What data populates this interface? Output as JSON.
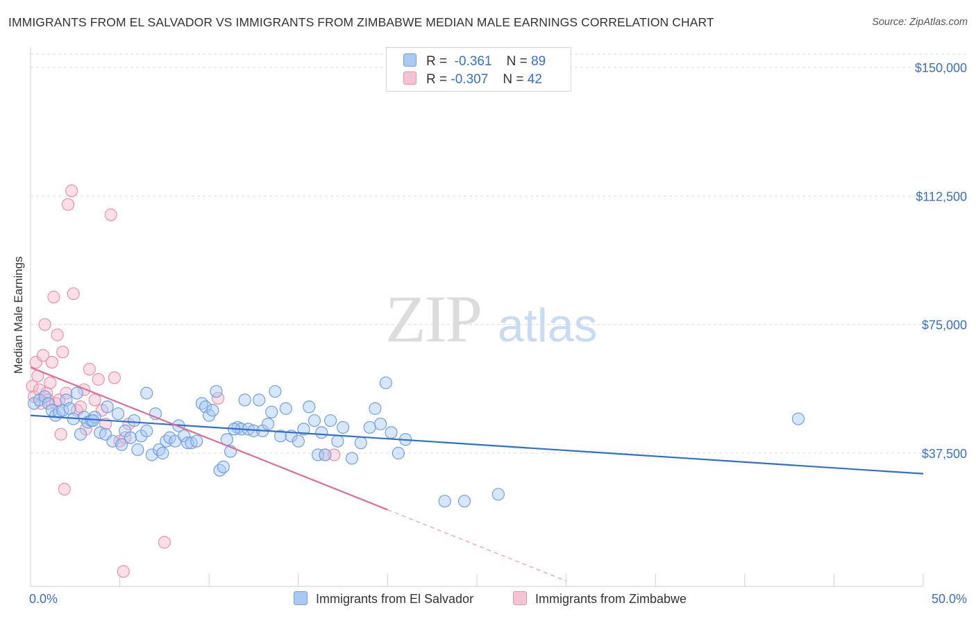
{
  "title": "IMMIGRANTS FROM EL SALVADOR VS IMMIGRANTS FROM ZIMBABWE MEDIAN MALE EARNINGS CORRELATION CHART",
  "source": "Source: ZipAtlas.com",
  "watermark": {
    "zip": "ZIP",
    "atlas": "atlas"
  },
  "legend": {
    "rows": [
      {
        "r_label": "R =",
        "r_value": "-0.361",
        "n_label": "N =",
        "n_value": "89"
      },
      {
        "r_label": "R =",
        "r_value": "-0.307",
        "n_label": "N =",
        "n_value": "42"
      }
    ]
  },
  "bottom_legend": [
    "Immigrants from El Salvador",
    "Immigrants from Zimbabwe"
  ],
  "colors": {
    "blue_fill": "#a9c8f2",
    "blue_stroke": "#6f9fdf",
    "blue_line": "#2f6fce",
    "pink_fill": "#f6b8cb",
    "pink_stroke": "#e591ad",
    "pink_line": "#e06b96",
    "axis_text": "#3a6fc4",
    "grid": "#d9d9d9"
  },
  "chart_data": {
    "type": "scatter",
    "title": "IMMIGRANTS FROM EL SALVADOR VS IMMIGRANTS FROM ZIMBABWE MEDIAN MALE EARNINGS CORRELATION CHART",
    "xlabel": "",
    "ylabel": "Median Male Earnings",
    "xlim": [
      0,
      50
    ],
    "ylim": [
      0,
      160000
    ],
    "x_tick_labels": [
      "0.0%",
      "50.0%"
    ],
    "y_ticks": [
      37500,
      75000,
      112500,
      150000
    ],
    "y_tick_labels": [
      "$37,500",
      "$75,000",
      "$112,500",
      "$150,000"
    ],
    "series": [
      {
        "name": "Immigrants from El Salvador",
        "r": -0.361,
        "n": 89,
        "trend": {
          "x0": 0.0,
          "y0": 48500,
          "x1": 50.0,
          "y1": 31500
        },
        "points": [
          [
            0.2,
            52000
          ],
          [
            0.5,
            53000
          ],
          [
            0.8,
            54000
          ],
          [
            1.0,
            52000
          ],
          [
            1.2,
            50000
          ],
          [
            1.4,
            48500
          ],
          [
            1.6,
            49500
          ],
          [
            1.8,
            50000
          ],
          [
            2.0,
            53000
          ],
          [
            2.2,
            50500
          ],
          [
            2.4,
            47500
          ],
          [
            2.6,
            55000
          ],
          [
            2.8,
            43000
          ],
          [
            3.0,
            48000
          ],
          [
            3.2,
            46500
          ],
          [
            3.4,
            47000
          ],
          [
            3.6,
            48000
          ],
          [
            3.9,
            43500
          ],
          [
            4.2,
            43000
          ],
          [
            4.3,
            51000
          ],
          [
            4.6,
            41000
          ],
          [
            4.9,
            49000
          ],
          [
            5.1,
            40000
          ],
          [
            5.3,
            44000
          ],
          [
            5.6,
            42000
          ],
          [
            5.8,
            47000
          ],
          [
            6.0,
            38500
          ],
          [
            6.2,
            42500
          ],
          [
            6.5,
            44000
          ],
          [
            6.5,
            55000
          ],
          [
            6.8,
            37000
          ],
          [
            7.0,
            49000
          ],
          [
            7.2,
            38500
          ],
          [
            7.4,
            37500
          ],
          [
            7.6,
            41000
          ],
          [
            7.8,
            42000
          ],
          [
            8.1,
            41000
          ],
          [
            8.3,
            45500
          ],
          [
            8.6,
            42500
          ],
          [
            8.8,
            40500
          ],
          [
            9.0,
            40500
          ],
          [
            9.3,
            41000
          ],
          [
            9.6,
            52000
          ],
          [
            9.8,
            51000
          ],
          [
            10.0,
            48500
          ],
          [
            10.2,
            50000
          ],
          [
            10.4,
            55500
          ],
          [
            10.6,
            32500
          ],
          [
            10.8,
            33500
          ],
          [
            11.0,
            41500
          ],
          [
            11.2,
            38000
          ],
          [
            11.6,
            45000
          ],
          [
            11.8,
            44500
          ],
          [
            12.0,
            53000
          ],
          [
            12.2,
            44500
          ],
          [
            12.5,
            44000
          ],
          [
            12.8,
            53000
          ],
          [
            13.0,
            44000
          ],
          [
            13.3,
            46000
          ],
          [
            13.5,
            49500
          ],
          [
            13.7,
            55500
          ],
          [
            14.0,
            42500
          ],
          [
            14.3,
            50500
          ],
          [
            14.6,
            42500
          ],
          [
            15.0,
            41000
          ],
          [
            15.3,
            44500
          ],
          [
            15.6,
            51000
          ],
          [
            15.9,
            47000
          ],
          [
            16.1,
            37000
          ],
          [
            16.3,
            43500
          ],
          [
            16.5,
            37000
          ],
          [
            16.8,
            47000
          ],
          [
            17.2,
            41000
          ],
          [
            17.5,
            45000
          ],
          [
            18.0,
            36000
          ],
          [
            18.5,
            40500
          ],
          [
            19.0,
            45000
          ],
          [
            19.3,
            50500
          ],
          [
            19.6,
            46000
          ],
          [
            19.9,
            58000
          ],
          [
            20.2,
            43500
          ],
          [
            20.6,
            37500
          ],
          [
            21.0,
            41500
          ],
          [
            23.2,
            23500
          ],
          [
            24.3,
            23500
          ],
          [
            26.2,
            25500
          ],
          [
            43.0,
            47500
          ],
          [
            3.5,
            47000
          ],
          [
            11.4,
            44500
          ]
        ]
      },
      {
        "name": "Immigrants from Zimbabwe",
        "r": -0.307,
        "n": 42,
        "trend": {
          "x0": 0.0,
          "y0": 62500,
          "x1": 20.0,
          "y1": 21000,
          "x_dash_end": 30.0
        },
        "points": [
          [
            0.1,
            57000
          ],
          [
            0.2,
            54000
          ],
          [
            0.3,
            64000
          ],
          [
            0.4,
            60000
          ],
          [
            0.5,
            56000
          ],
          [
            0.6,
            52000
          ],
          [
            0.7,
            66000
          ],
          [
            0.8,
            75000
          ],
          [
            0.9,
            55000
          ],
          [
            1.0,
            53000
          ],
          [
            1.1,
            58000
          ],
          [
            1.2,
            64000
          ],
          [
            1.3,
            83000
          ],
          [
            1.4,
            52000
          ],
          [
            1.5,
            72000
          ],
          [
            1.6,
            53000
          ],
          [
            1.7,
            43000
          ],
          [
            1.8,
            67000
          ],
          [
            1.9,
            27000
          ],
          [
            2.0,
            55000
          ],
          [
            2.1,
            110000
          ],
          [
            2.3,
            114000
          ],
          [
            2.4,
            84000
          ],
          [
            2.6,
            50000
          ],
          [
            2.8,
            51000
          ],
          [
            3.0,
            56000
          ],
          [
            3.1,
            44500
          ],
          [
            3.3,
            62000
          ],
          [
            3.6,
            53000
          ],
          [
            3.8,
            59000
          ],
          [
            4.0,
            50000
          ],
          [
            4.2,
            46000
          ],
          [
            4.5,
            107000
          ],
          [
            4.7,
            59500
          ],
          [
            5.0,
            41000
          ],
          [
            5.2,
            3000
          ],
          [
            5.3,
            42000
          ],
          [
            5.5,
            46000
          ],
          [
            7.5,
            11500
          ],
          [
            10.5,
            53500
          ],
          [
            16.5,
            37000
          ],
          [
            17.0,
            37000
          ]
        ]
      }
    ]
  }
}
